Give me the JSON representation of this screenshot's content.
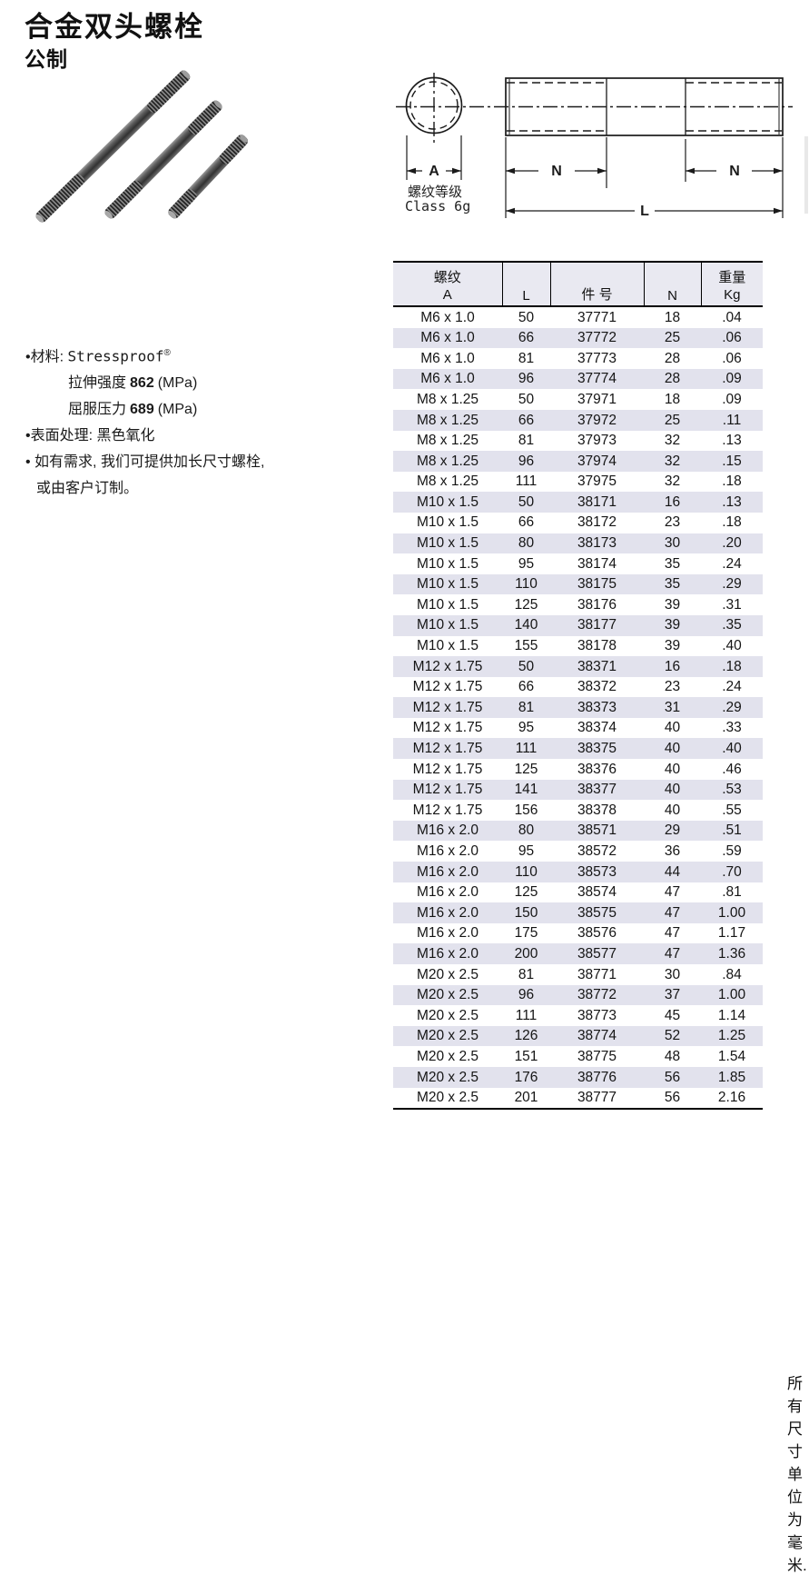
{
  "page": {
    "title": "合金双头螺栓",
    "subtitle": "公制"
  },
  "diagram": {
    "label_a": "A",
    "label_n_left": "N",
    "label_n_right": "N",
    "label_l": "L",
    "thread_class_line1": "螺纹等级",
    "thread_class_line2": "Class 6g"
  },
  "specs": {
    "material_prefix": "•材料: ",
    "material_name": "Stressproof",
    "material_sup": "®",
    "tensile_label": "拉伸强度",
    "tensile_value": "862",
    "tensile_unit": "(MPa)",
    "yield_label": "屈服压力",
    "yield_value": "689",
    "yield_unit": "(MPa)",
    "finish_line": "•表面处理: 黑色氧化",
    "custom_line1": "• 如有需求, 我们可提供加长尺寸螺栓,",
    "custom_line2": "或由客户订制。"
  },
  "table": {
    "headers": {
      "thread_top": "螺纹",
      "thread_bottom": "A",
      "length": "L",
      "part": "件 号",
      "n": "N",
      "weight_top": "重量",
      "weight_bottom": "Kg"
    },
    "rows": [
      [
        "M6 x 1.0",
        "50",
        "37771",
        "18",
        ".04"
      ],
      [
        "M6 x 1.0",
        "66",
        "37772",
        "25",
        ".06"
      ],
      [
        "M6 x 1.0",
        "81",
        "37773",
        "28",
        ".06"
      ],
      [
        "M6 x 1.0",
        "96",
        "37774",
        "28",
        ".09"
      ],
      [
        "M8 x 1.25",
        "50",
        "37971",
        "18",
        ".09"
      ],
      [
        "M8 x 1.25",
        "66",
        "37972",
        "25",
        ".11"
      ],
      [
        "M8 x 1.25",
        "81",
        "37973",
        "32",
        ".13"
      ],
      [
        "M8 x 1.25",
        "96",
        "37974",
        "32",
        ".15"
      ],
      [
        "M8 x 1.25",
        "111",
        "37975",
        "32",
        ".18"
      ],
      [
        "M10 x 1.5",
        "50",
        "38171",
        "16",
        ".13"
      ],
      [
        "M10 x 1.5",
        "66",
        "38172",
        "23",
        ".18"
      ],
      [
        "M10 x 1.5",
        "80",
        "38173",
        "30",
        ".20"
      ],
      [
        "M10 x 1.5",
        "95",
        "38174",
        "35",
        ".24"
      ],
      [
        "M10 x 1.5",
        "110",
        "38175",
        "35",
        ".29"
      ],
      [
        "M10 x 1.5",
        "125",
        "38176",
        "39",
        ".31"
      ],
      [
        "M10 x 1.5",
        "140",
        "38177",
        "39",
        ".35"
      ],
      [
        "M10 x 1.5",
        "155",
        "38178",
        "39",
        ".40"
      ],
      [
        "M12 x 1.75",
        "50",
        "38371",
        "16",
        ".18"
      ],
      [
        "M12 x 1.75",
        "66",
        "38372",
        "23",
        ".24"
      ],
      [
        "M12 x 1.75",
        "81",
        "38373",
        "31",
        ".29"
      ],
      [
        "M12 x 1.75",
        "95",
        "38374",
        "40",
        ".33"
      ],
      [
        "M12 x 1.75",
        "111",
        "38375",
        "40",
        ".40"
      ],
      [
        "M12 x 1.75",
        "125",
        "38376",
        "40",
        ".46"
      ],
      [
        "M12 x 1.75",
        "141",
        "38377",
        "40",
        ".53"
      ],
      [
        "M12 x 1.75",
        "156",
        "38378",
        "40",
        ".55"
      ],
      [
        "M16 x 2.0",
        "80",
        "38571",
        "29",
        ".51"
      ],
      [
        "M16 x 2.0",
        "95",
        "38572",
        "36",
        ".59"
      ],
      [
        "M16 x 2.0",
        "110",
        "38573",
        "44",
        ".70"
      ],
      [
        "M16 x 2.0",
        "125",
        "38574",
        "47",
        ".81"
      ],
      [
        "M16 x 2.0",
        "150",
        "38575",
        "47",
        "1.00"
      ],
      [
        "M16 x 2.0",
        "175",
        "38576",
        "47",
        "1.17"
      ],
      [
        "M16 x 2.0",
        "200",
        "38577",
        "47",
        "1.36"
      ],
      [
        "M20 x 2.5",
        "81",
        "38771",
        "30",
        ".84"
      ],
      [
        "M20 x 2.5",
        "96",
        "38772",
        "37",
        "1.00"
      ],
      [
        "M20 x 2.5",
        "111",
        "38773",
        "45",
        "1.14"
      ],
      [
        "M20 x 2.5",
        "126",
        "38774",
        "52",
        "1.25"
      ],
      [
        "M20 x 2.5",
        "151",
        "38775",
        "48",
        "1.54"
      ],
      [
        "M20 x 2.5",
        "176",
        "38776",
        "56",
        "1.85"
      ],
      [
        "M20 x 2.5",
        "201",
        "38777",
        "56",
        "2.16"
      ]
    ],
    "footnote": "所有尺寸单位为毫米."
  },
  "colors": {
    "row_alt": "#e2e2ed",
    "header_bg": "#e9e9f1",
    "table_line": "#000000"
  }
}
